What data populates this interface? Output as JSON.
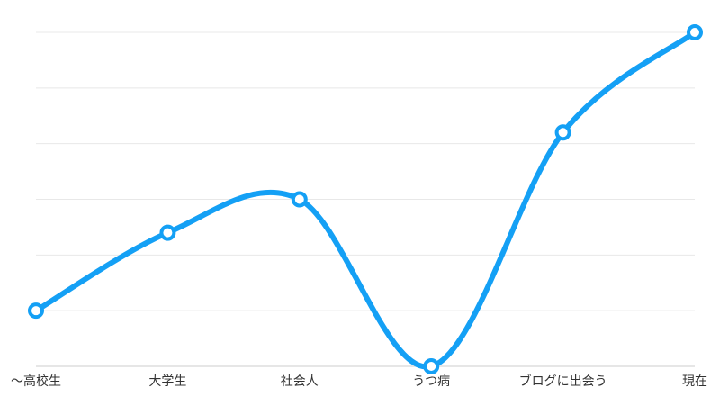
{
  "chart_data": {
    "type": "line",
    "categories": [
      "〜高校生",
      "大学生",
      "社会人",
      "うつ病",
      "ブログに出会う",
      "現在"
    ],
    "series": [
      {
        "color": "#14a0f5",
        "values": [
          1,
          2.4,
          3,
          0,
          4.2,
          6
        ]
      }
    ],
    "ylim": [
      0,
      6
    ],
    "yticks": [
      0,
      1,
      2,
      3,
      4,
      5,
      6
    ],
    "grid": true
  }
}
